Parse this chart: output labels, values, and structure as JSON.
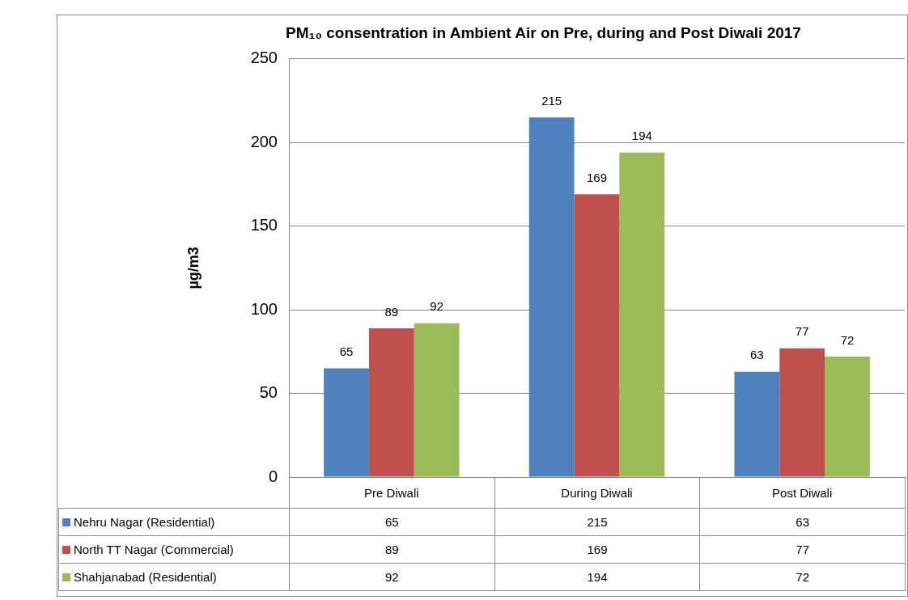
{
  "chart_data": {
    "type": "bar",
    "title": "PM₁₀ consentration in Ambient Air on Pre, during and Post Diwali 2017",
    "ylabel": "µg/m3",
    "categories": [
      "Pre Diwali",
      "During Diwali",
      "Post Diwali"
    ],
    "series": [
      {
        "name": "Nehru Nagar (Residential)",
        "color": "#4f81bd",
        "values": [
          65,
          215,
          63
        ],
        "value_labels": [
          "65",
          "215",
          "63"
        ]
      },
      {
        "name": "North TT Nagar (Commercial)",
        "color": "#c0504d",
        "values": [
          89,
          169,
          77
        ],
        "value_labels": [
          "89",
          "169",
          "77"
        ]
      },
      {
        "name": "Shahjanabad (Residential)",
        "color": "#9bbb59",
        "values": [
          92,
          194,
          72
        ],
        "value_labels": [
          "92",
          "194",
          "72"
        ]
      }
    ],
    "ylim": [
      0,
      250
    ],
    "yticks": [
      0,
      50,
      100,
      150,
      200,
      250
    ],
    "grid": "y",
    "legend": "bottom",
    "data_labels": true
  }
}
